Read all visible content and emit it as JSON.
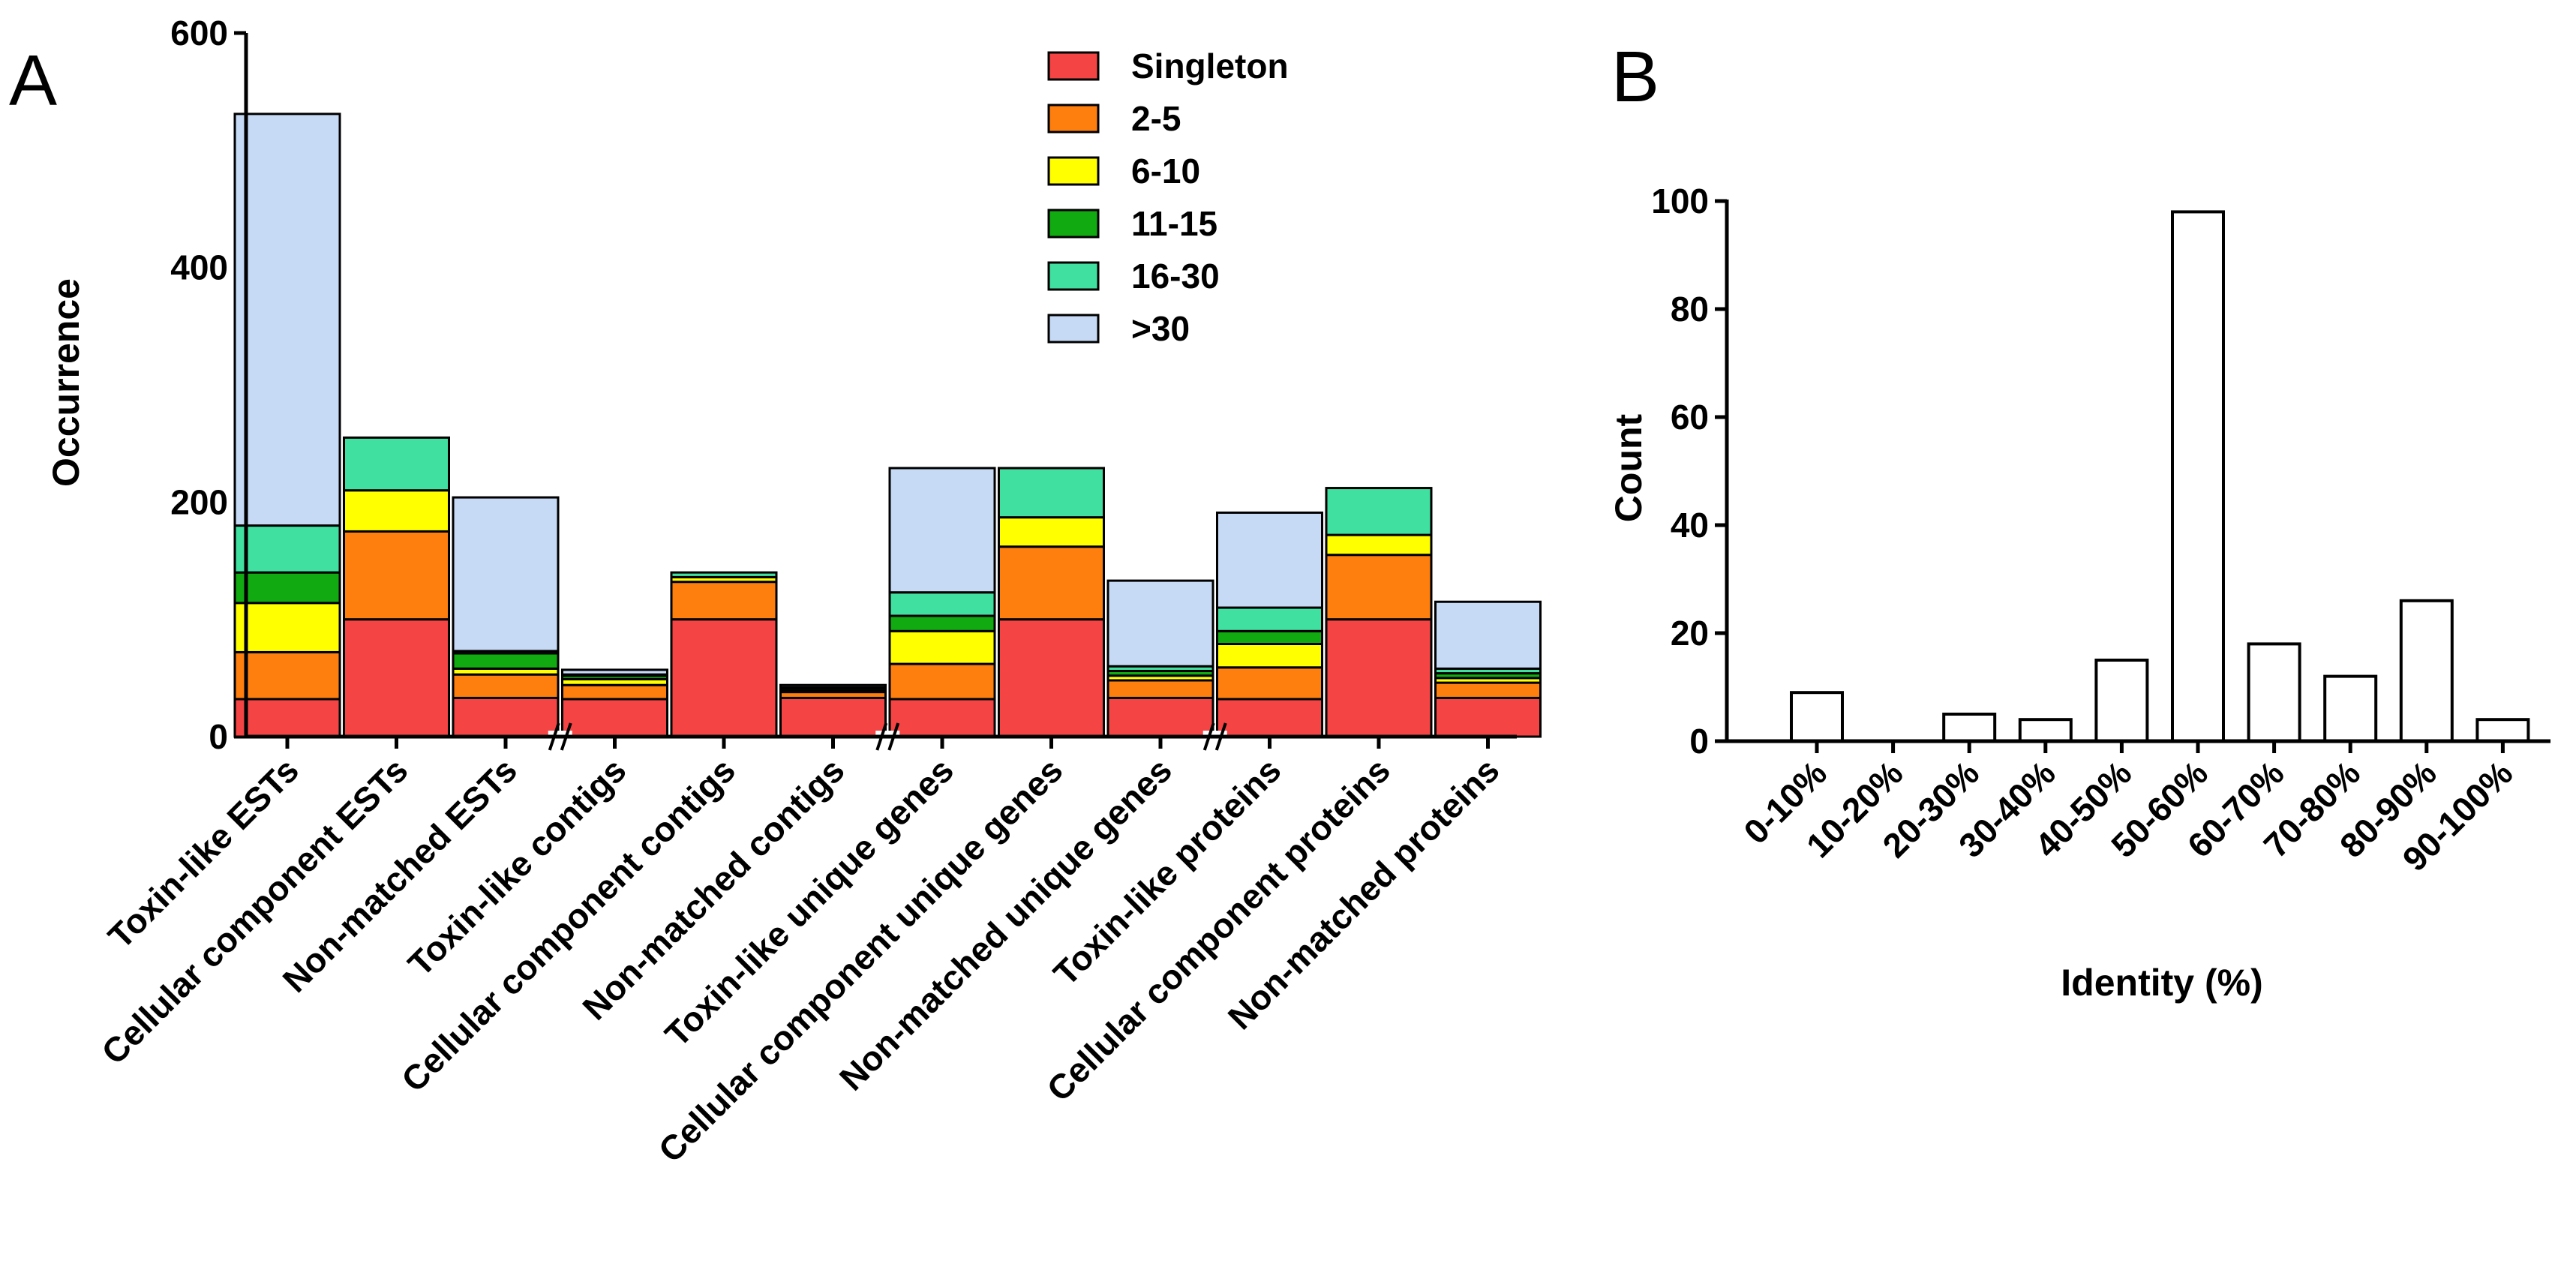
{
  "panels": {
    "a_label": "A",
    "b_label": "B"
  },
  "chart_data": [
    {
      "type": "bar",
      "stacked": true,
      "panel": "A",
      "ylabel": "Occurrence",
      "xlabel": "",
      "ylim": [
        0,
        600
      ],
      "yticks": [
        "0",
        "200",
        "400",
        "600"
      ],
      "legend_position": "top-right",
      "axis_break_label": "//",
      "axis_breaks_after": [
        2,
        5,
        8
      ],
      "categories": [
        "Toxin-like ESTs",
        "Cellular component ESTs",
        "Non-matched ESTs",
        "Toxin-like contigs",
        "Cellular component contigs",
        "Non-matched contigs",
        "Toxin-like unique genes",
        "Cellular component unique genes",
        "Non-matched unique genes",
        "Toxin-like proteins",
        "Cellular component proteins",
        "Non-matched proteins"
      ],
      "series": [
        {
          "name": "Singleton",
          "color": "#f44444",
          "values": [
            32,
            100,
            33,
            32,
            100,
            33,
            32,
            100,
            33,
            32,
            100,
            33
          ]
        },
        {
          "name": "2-5",
          "color": "#ff7f0e",
          "values": [
            40,
            75,
            20,
            12,
            32,
            5,
            30,
            62,
            15,
            27,
            55,
            13
          ]
        },
        {
          "name": "6-10",
          "color": "#ffff00",
          "values": [
            42,
            35,
            5,
            5,
            4,
            1,
            28,
            25,
            4,
            20,
            17,
            4
          ]
        },
        {
          "name": "11-15",
          "color": "#11aa11",
          "values": [
            26,
            0,
            13,
            3,
            0,
            2,
            13,
            0,
            4,
            11,
            0,
            4
          ]
        },
        {
          "name": "16-30",
          "color": "#40e0a0",
          "values": [
            40,
            45,
            2,
            1,
            4,
            1,
            20,
            42,
            4,
            20,
            40,
            4
          ]
        },
        {
          "name": ">30",
          "color": "#c6daf6",
          "values": [
            351,
            0,
            131,
            4,
            0,
            2,
            106,
            0,
            73,
            81,
            0,
            57
          ]
        }
      ]
    },
    {
      "type": "bar",
      "panel": "B",
      "xlabel": "Identity (%)",
      "ylabel": "Count",
      "ylim": [
        0,
        100
      ],
      "yticks": [
        "0",
        "20",
        "40",
        "60",
        "80",
        "100"
      ],
      "categories": [
        "0-10%",
        "10-20%",
        "20-30%",
        "30-40%",
        "40-50%",
        "50-60%",
        "60-70%",
        "70-80%",
        "80-90%",
        "90-100%"
      ],
      "values": [
        9,
        0,
        5,
        4,
        15,
        98,
        18,
        12,
        26,
        4
      ]
    }
  ]
}
